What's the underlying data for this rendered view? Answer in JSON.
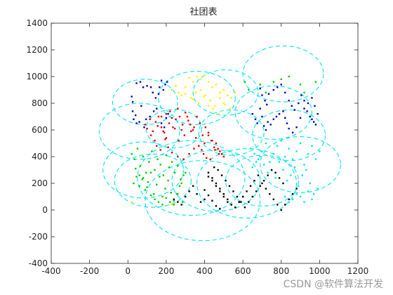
{
  "chart_data": {
    "type": "scatter",
    "title": "社团表",
    "xlim": [
      -400,
      1200
    ],
    "ylim": [
      -400,
      1400
    ],
    "xticks": [
      -400,
      -200,
      0,
      200,
      400,
      600,
      800,
      1000,
      1200
    ],
    "yticks": [
      -400,
      -200,
      0,
      200,
      400,
      600,
      800,
      1000,
      1200,
      1400
    ],
    "xlabel": "",
    "ylabel": "",
    "grid": false,
    "circles_color": "#00e5ee",
    "circles": [
      {
        "cx": 90,
        "cy": 810,
        "r": 170
      },
      {
        "cx": 60,
        "cy": 590,
        "r": 210
      },
      {
        "cx": 240,
        "cy": 610,
        "r": 145
      },
      {
        "cx": 360,
        "cy": 840,
        "r": 200
      },
      {
        "cx": 510,
        "cy": 880,
        "r": 170
      },
      {
        "cx": 810,
        "cy": 1020,
        "r": 210
      },
      {
        "cx": 540,
        "cy": 580,
        "r": 170
      },
      {
        "cx": 760,
        "cy": 730,
        "r": 200
      },
      {
        "cx": 840,
        "cy": 560,
        "r": 190
      },
      {
        "cx": 900,
        "cy": 340,
        "r": 210
      },
      {
        "cx": 80,
        "cy": 300,
        "r": 210
      },
      {
        "cx": 130,
        "cy": 220,
        "r": 200
      },
      {
        "cx": 390,
        "cy": 70,
        "r": 300
      },
      {
        "cx": 330,
        "cy": 240,
        "r": 280
      },
      {
        "cx": 460,
        "cy": 220,
        "r": 230
      },
      {
        "cx": 620,
        "cy": 200,
        "r": 260
      },
      {
        "cx": 700,
        "cy": 220,
        "r": 190
      }
    ],
    "series": [
      {
        "color": "#0000cc",
        "x": [
          45,
          65,
          80,
          100,
          120,
          130,
          145,
          160,
          165,
          175,
          185,
          195,
          205,
          25,
          30,
          45,
          40,
          60,
          70,
          20,
          25,
          85,
          95,
          115,
          135,
          150,
          175,
          190,
          200,
          210,
          690,
          700,
          715,
          725,
          735,
          760,
          780,
          800,
          820,
          840,
          855,
          870,
          890,
          905,
          920,
          935,
          950,
          960,
          970,
          980,
          990,
          650,
          665,
          675,
          690,
          700,
          710,
          720,
          730,
          745,
          760,
          775,
          790,
          810,
          820,
          830,
          840,
          860,
          880,
          900,
          920,
          940,
          960,
          975
        ],
        "y": [
          950,
          960,
          920,
          930,
          920,
          880,
          840,
          870,
          920,
          970,
          900,
          940,
          960,
          740,
          680,
          650,
          710,
          660,
          780,
          850,
          810,
          620,
          680,
          700,
          740,
          760,
          650,
          620,
          690,
          720,
          910,
          860,
          820,
          790,
          870,
          900,
          920,
          940,
          880,
          820,
          780,
          750,
          800,
          860,
          820,
          740,
          700,
          680,
          660,
          640,
          720,
          720,
          680,
          650,
          760,
          700,
          630,
          600,
          660,
          640,
          680,
          700,
          720,
          740,
          690,
          650,
          610,
          580,
          620,
          690,
          760,
          800,
          840,
          780
        ]
      },
      {
        "color": "#dd0000",
        "x": [
          90,
          100,
          115,
          130,
          145,
          160,
          175,
          190,
          200,
          215,
          230,
          245,
          260,
          270,
          285,
          300,
          315,
          330,
          345,
          360,
          375,
          390,
          405,
          420,
          435,
          450,
          460,
          470,
          480,
          490,
          500,
          120,
          140,
          155,
          175,
          185,
          200,
          220,
          235,
          250,
          265,
          280,
          295,
          310,
          325,
          340,
          355,
          370,
          385,
          400,
          420,
          440,
          455,
          475,
          150,
          170,
          195,
          210,
          230,
          260,
          290,
          320,
          345,
          370,
          395,
          410,
          430
        ],
        "y": [
          640,
          610,
          680,
          590,
          660,
          700,
          620,
          580,
          720,
          650,
          690,
          610,
          760,
          700,
          640,
          730,
          670,
          590,
          620,
          700,
          650,
          560,
          620,
          580,
          520,
          470,
          500,
          460,
          440,
          420,
          400,
          560,
          520,
          630,
          700,
          590,
          540,
          740,
          620,
          680,
          520,
          600,
          560,
          700,
          640,
          600,
          540,
          480,
          450,
          500,
          560,
          520,
          450,
          420,
          480,
          450,
          530,
          470,
          430,
          400,
          380,
          420,
          460,
          480,
          420,
          390,
          380
        ]
      },
      {
        "color": "#ffee00",
        "x": [
          230,
          250,
          265,
          280,
          300,
          320,
          340,
          360,
          380,
          400,
          420,
          440,
          460,
          480,
          500,
          520,
          540,
          560,
          340,
          370,
          395,
          420,
          445,
          470,
          500,
          530,
          300,
          330,
          355,
          380,
          405,
          430,
          455,
          480,
          505,
          20,
          230
        ],
        "y": [
          900,
          930,
          880,
          860,
          920,
          990,
          960,
          1000,
          980,
          1010,
          960,
          920,
          940,
          880,
          900,
          860,
          840,
          880,
          830,
          800,
          850,
          780,
          760,
          720,
          800,
          760,
          870,
          840,
          880,
          900,
          860,
          820,
          780,
          840,
          790,
          60,
          40
        ]
      },
      {
        "color": "#00cc00",
        "x": [
          20,
          35,
          50,
          65,
          80,
          95,
          110,
          125,
          140,
          155,
          170,
          185,
          200,
          215,
          230,
          245,
          260,
          275,
          290,
          30,
          45,
          60,
          75,
          90,
          105,
          120,
          135,
          150,
          165,
          180,
          195,
          210,
          225,
          240,
          255,
          270,
          285,
          40,
          60,
          80,
          100,
          120,
          140,
          160,
          180,
          200,
          220,
          240,
          260,
          280,
          300,
          610,
          630,
          690,
          720,
          760,
          800,
          840,
          900,
          920,
          980
        ],
        "y": [
          420,
          380,
          460,
          330,
          400,
          280,
          360,
          440,
          300,
          380,
          340,
          260,
          410,
          320,
          360,
          280,
          330,
          230,
          260,
          200,
          250,
          180,
          230,
          150,
          210,
          280,
          120,
          190,
          250,
          100,
          160,
          220,
          130,
          70,
          120,
          180,
          60,
          310,
          260,
          240,
          170,
          110,
          80,
          60,
          40,
          90,
          60,
          40,
          120,
          200,
          280,
          960,
          900,
          940,
          880,
          960,
          980,
          1000,
          940,
          880,
          960
        ]
      },
      {
        "color": "#00e5ee",
        "x": [
          640,
          660,
          680,
          700,
          720,
          740,
          760,
          780,
          800,
          820,
          840,
          860,
          880,
          900,
          920,
          940,
          960,
          980,
          1000,
          650,
          670,
          690,
          710,
          730,
          750,
          770,
          790,
          810,
          830,
          850,
          870,
          890,
          910,
          930,
          950,
          970,
          990,
          820,
          840,
          860,
          880,
          900,
          920,
          940,
          960
        ],
        "y": [
          460,
          420,
          380,
          440,
          500,
          360,
          420,
          480,
          520,
          400,
          460,
          380,
          440,
          500,
          340,
          420,
          480,
          380,
          440,
          320,
          360,
          400,
          340,
          280,
          300,
          240,
          360,
          300,
          220,
          260,
          320,
          180,
          260,
          300,
          200,
          120,
          160,
          100,
          60,
          80,
          120,
          100,
          60,
          140,
          80
        ]
      },
      {
        "color": "#000000",
        "x": [
          240,
          260,
          280,
          300,
          320,
          340,
          360,
          380,
          400,
          420,
          440,
          460,
          480,
          500,
          520,
          540,
          560,
          580,
          600,
          420,
          440,
          460,
          480,
          500,
          520,
          540,
          560,
          580,
          600,
          620,
          640,
          660,
          680,
          700,
          720,
          740,
          760,
          780,
          800,
          820,
          840,
          860,
          880,
          450,
          470,
          490,
          510,
          530,
          550,
          570,
          590,
          610,
          630,
          650,
          670,
          690,
          710,
          730,
          750,
          770,
          790,
          810,
          400,
          420,
          440,
          460,
          480
        ],
        "y": [
          80,
          60,
          40,
          100,
          140,
          180,
          120,
          60,
          80,
          250,
          220,
          180,
          140,
          100,
          60,
          40,
          20,
          60,
          100,
          280,
          240,
          200,
          160,
          120,
          80,
          40,
          20,
          60,
          100,
          140,
          180,
          220,
          260,
          200,
          160,
          120,
          80,
          40,
          0,
          40,
          80,
          120,
          160,
          320,
          300,
          260,
          220,
          180,
          140,
          100,
          60,
          20,
          60,
          100,
          140,
          180,
          220,
          260,
          300,
          280,
          240,
          200,
          150,
          110,
          70,
          30,
          10
        ]
      }
    ]
  },
  "watermark": "CSDN @软件算法开发"
}
